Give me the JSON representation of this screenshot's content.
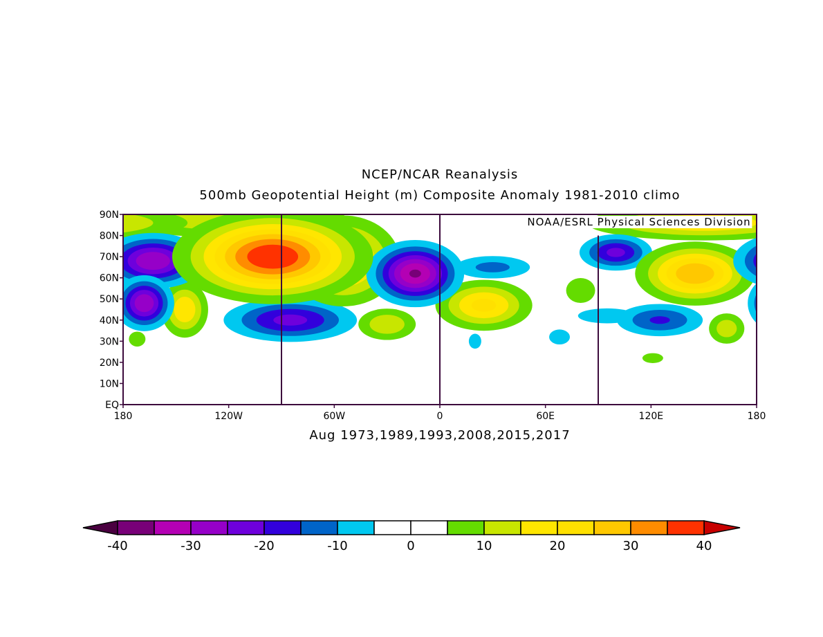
{
  "title": "NCEP/NCAR Reanalysis",
  "subtitle": "500mb Geopotential Height (m) Composite Anomaly 1981-2010 climo",
  "credit": "NOAA/ESRL Physical Sciences Division",
  "caption": "Aug 1973,1989,1993,2008,2015,2017",
  "map": {
    "lon_range": [
      -180,
      180
    ],
    "lat_range": [
      0,
      90
    ],
    "lat_ticks": [
      "90N",
      "80N",
      "70N",
      "60N",
      "50N",
      "40N",
      "30N",
      "20N",
      "10N",
      "EQ"
    ],
    "lon_ticks": [
      "180",
      "120W",
      "60W",
      "0",
      "60E",
      "120E",
      "180"
    ],
    "anomaly_centers": [
      {
        "region": "arctic-band-west",
        "lon": -120,
        "lat": 88,
        "value": 15,
        "slon": 45,
        "slat": 6
      },
      {
        "region": "arctic-band-east",
        "lon": 150,
        "lat": 86,
        "value": 20,
        "slon": 40,
        "slat": 5
      },
      {
        "region": "canada-high",
        "lon": -95,
        "lat": 70,
        "value": 40,
        "slon": 28,
        "slat": 11
      },
      {
        "region": "greenland-high",
        "lon": -55,
        "lat": 68,
        "value": 25,
        "slon": 18,
        "slat": 12
      },
      {
        "region": "ne-pacific-high",
        "lon": -145,
        "lat": 45,
        "value": 20,
        "slon": 8,
        "slat": 8
      },
      {
        "region": "atlantic-high",
        "lon": -30,
        "lat": 38,
        "value": 15,
        "slon": 11,
        "slat": 5
      },
      {
        "region": "europe-high",
        "lon": 25,
        "lat": 47,
        "value": 22,
        "slon": 16,
        "slat": 7
      },
      {
        "region": "central-asia-high",
        "lon": 80,
        "lat": 54,
        "value": 10,
        "slon": 7,
        "slat": 5
      },
      {
        "region": "east-asia-high",
        "lon": 145,
        "lat": 62,
        "value": 30,
        "slon": 18,
        "slat": 8
      },
      {
        "region": "w-pacific-high",
        "lon": 163,
        "lat": 36,
        "value": 14,
        "slon": 7,
        "slat": 5
      },
      {
        "region": "dateline-high",
        "lon": -172,
        "lat": 31,
        "value": 10,
        "slon": 4,
        "slat": 3
      },
      {
        "region": "s-china-high",
        "lon": 121,
        "lat": 22,
        "value": 10,
        "slon": 5,
        "slat": 2
      },
      {
        "region": "bering-low",
        "lon": -163,
        "lat": 68,
        "value": -30,
        "slon": 16,
        "slat": 7
      },
      {
        "region": "aleutian-low",
        "lon": -168,
        "lat": 48,
        "value": -30,
        "slon": 9,
        "slat": 7
      },
      {
        "region": "us-low",
        "lon": -85,
        "lat": 40,
        "value": -22,
        "slon": 22,
        "slat": 6
      },
      {
        "region": "ne-atlantic-low",
        "lon": -14,
        "lat": 62,
        "value": -36,
        "slon": 14,
        "slat": 8
      },
      {
        "region": "scandinavia-low",
        "lon": 30,
        "lat": 65,
        "value": -12,
        "slon": 16,
        "slat": 4
      },
      {
        "region": "siberia-low",
        "lon": 100,
        "lat": 72,
        "value": -22,
        "slon": 12,
        "slat": 5
      },
      {
        "region": "japan-low",
        "lon": 125,
        "lat": 40,
        "value": -16,
        "slon": 16,
        "slat": 5
      },
      {
        "region": "tibet-low",
        "lon": 95,
        "lat": 42,
        "value": -10,
        "slon": 14,
        "slat": 3
      },
      {
        "region": "med-low",
        "lon": 20,
        "lat": 30,
        "value": -10,
        "slon": 3,
        "slat": 3
      },
      {
        "region": "arabia-low",
        "lon": 68,
        "lat": 32,
        "value": -10,
        "slon": 5,
        "slat": 3
      },
      {
        "region": "far-east-low",
        "lon": 180,
        "lat": 70,
        "value": -22,
        "slon": 6,
        "slat": 4
      },
      {
        "region": "nw-pacific-low",
        "lon": 180,
        "lat": 48,
        "value": -10,
        "slon": 4,
        "slat": 3
      }
    ]
  },
  "colorbar": {
    "levels": [
      -40,
      -35,
      -30,
      -25,
      -20,
      -15,
      -10,
      -5,
      0,
      5,
      10,
      15,
      20,
      25,
      30,
      35,
      40
    ],
    "labels": [
      "-40",
      "-30",
      "-20",
      "-10",
      "0",
      "10",
      "20",
      "30",
      "40"
    ],
    "colors": [
      "#780078",
      "#b400b4",
      "#9600c8",
      "#6e00dc",
      "#3200dc",
      "#0064c8",
      "#00c8f0",
      "#ffffff",
      "#ffffff",
      "#64dc00",
      "#c8e600",
      "#ffe600",
      "#ffe000",
      "#ffc800",
      "#ff8c00",
      "#ff3200"
    ],
    "under_color": "#4a0040",
    "over_color": "#c80000"
  }
}
